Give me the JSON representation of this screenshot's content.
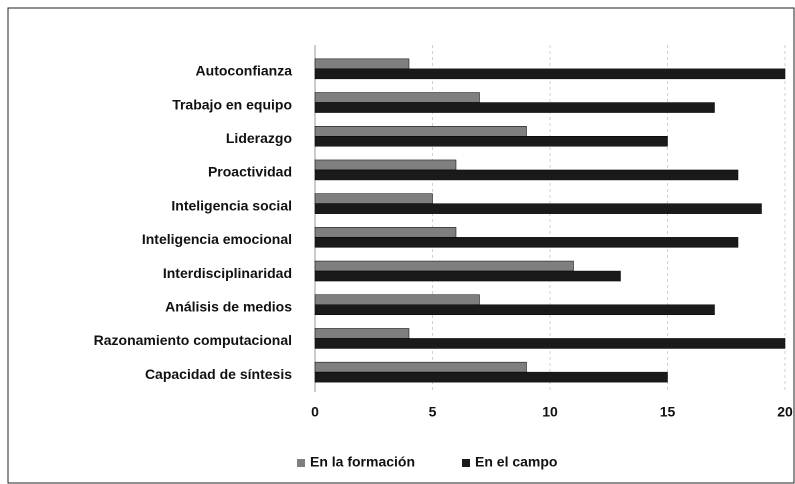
{
  "chart_data": {
    "type": "bar",
    "orientation": "horizontal",
    "categories": [
      "Autoconfianza",
      "Trabajo en equipo",
      "Liderazgo",
      "Proactividad",
      "Inteligencia social",
      "Inteligencia emocional",
      "Interdisciplinaridad",
      "Análisis de medios",
      "Razonamiento computacional",
      "Capacidad de síntesis"
    ],
    "series": [
      {
        "name": "En la formación",
        "color": "#7f7f7f",
        "values": [
          4,
          7,
          9,
          6,
          5,
          6,
          11,
          7,
          4,
          9
        ]
      },
      {
        "name": "En el campo",
        "color": "#1a1a1a",
        "values": [
          20,
          17,
          15,
          18,
          19,
          18,
          13,
          17,
          20,
          15
        ]
      }
    ],
    "xlim": [
      0,
      20
    ],
    "xticks": [
      0,
      5,
      10,
      15,
      20
    ],
    "grid": true,
    "legend": "bottom"
  }
}
